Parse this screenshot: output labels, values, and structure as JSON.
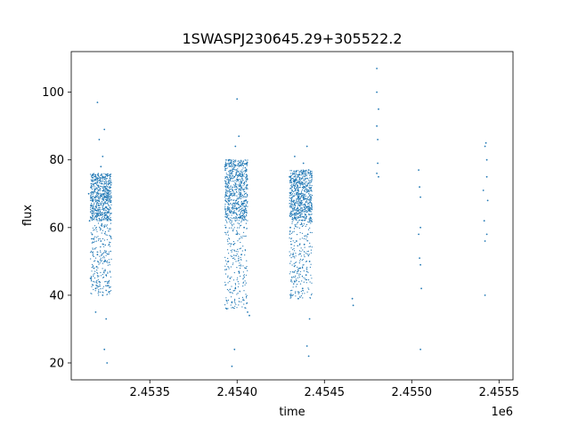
{
  "chart_data": {
    "type": "scatter",
    "title": "1SWASPJ230645.29+305522.2",
    "xlabel": "time",
    "ylabel": "flux",
    "x_offset_label": "1e6",
    "xlim": [
      2453050,
      2455580
    ],
    "ylim": [
      15,
      112
    ],
    "x_ticks": [
      2453500,
      2454000,
      2454500,
      2455000,
      2455500
    ],
    "x_tick_labels": [
      "2.4535",
      "2.4540",
      "2.4545",
      "2.4550",
      "2.4555"
    ],
    "y_ticks": [
      20,
      40,
      60,
      80,
      100
    ],
    "y_tick_labels": [
      "20",
      "40",
      "60",
      "80",
      "100"
    ],
    "grid": false,
    "marker_color": "#1f77b4",
    "series": [
      {
        "points": [
          [
            2453150,
            70
          ],
          [
            2453155,
            62
          ],
          [
            2453160,
            45
          ],
          [
            2453165,
            72
          ],
          [
            2453170,
            58
          ],
          [
            2453175,
            68
          ],
          [
            2453180,
            48
          ],
          [
            2453185,
            74
          ],
          [
            2453190,
            42
          ],
          [
            2453195,
            65
          ],
          [
            2453200,
            52
          ],
          [
            2453205,
            71
          ],
          [
            2453210,
            44
          ],
          [
            2453215,
            69
          ],
          [
            2453220,
            56
          ],
          [
            2453225,
            73
          ],
          [
            2453230,
            40
          ],
          [
            2453235,
            67
          ],
          [
            2453240,
            50
          ],
          [
            2453245,
            75
          ],
          [
            2453250,
            46
          ],
          [
            2453255,
            63
          ],
          [
            2453260,
            70
          ],
          [
            2453265,
            41
          ],
          [
            2453270,
            72
          ],
          [
            2453200,
            97
          ],
          [
            2453210,
            86
          ],
          [
            2453230,
            81
          ],
          [
            2453240,
            89
          ],
          [
            2453250,
            33
          ],
          [
            2453240,
            24
          ],
          [
            2453255,
            20
          ],
          [
            2453190,
            35
          ],
          [
            2453220,
            78
          ],
          [
            2453930,
            78
          ],
          [
            2453935,
            60
          ],
          [
            2453940,
            36
          ],
          [
            2453945,
            72
          ],
          [
            2453950,
            50
          ],
          [
            2453955,
            80
          ],
          [
            2453960,
            45
          ],
          [
            2453965,
            70
          ],
          [
            2453970,
            38
          ],
          [
            2453975,
            66
          ],
          [
            2453980,
            55
          ],
          [
            2453985,
            75
          ],
          [
            2453990,
            42
          ],
          [
            2453995,
            68
          ],
          [
            2454000,
            58
          ],
          [
            2454005,
            74
          ],
          [
            2454010,
            47
          ],
          [
            2454015,
            63
          ],
          [
            2454020,
            71
          ],
          [
            2454025,
            52
          ],
          [
            2454030,
            67
          ],
          [
            2454040,
            60
          ],
          [
            2454050,
            48
          ],
          [
            2454060,
            35
          ],
          [
            2454070,
            34
          ],
          [
            2453990,
            84
          ],
          [
            2454000,
            98
          ],
          [
            2454010,
            87
          ],
          [
            2453970,
            19
          ],
          [
            2453985,
            24
          ],
          [
            2454300,
            75
          ],
          [
            2454305,
            60
          ],
          [
            2454310,
            40
          ],
          [
            2454315,
            72
          ],
          [
            2454320,
            52
          ],
          [
            2454325,
            68
          ],
          [
            2454330,
            44
          ],
          [
            2454335,
            74
          ],
          [
            2454340,
            56
          ],
          [
            2454345,
            65
          ],
          [
            2454350,
            39
          ],
          [
            2454355,
            70
          ],
          [
            2454360,
            48
          ],
          [
            2454365,
            73
          ],
          [
            2454370,
            61
          ],
          [
            2454375,
            42
          ],
          [
            2454380,
            69
          ],
          [
            2454385,
            55
          ],
          [
            2454390,
            72
          ],
          [
            2454395,
            46
          ],
          [
            2454400,
            66
          ],
          [
            2454405,
            58
          ],
          [
            2454410,
            71
          ],
          [
            2454415,
            50
          ],
          [
            2454420,
            63
          ],
          [
            2454330,
            81
          ],
          [
            2454380,
            79
          ],
          [
            2454400,
            84
          ],
          [
            2454410,
            77
          ],
          [
            2454400,
            25
          ],
          [
            2454410,
            22
          ],
          [
            2454415,
            33
          ],
          [
            2454660,
            39
          ],
          [
            2454665,
            37
          ],
          [
            2454800,
            107
          ],
          [
            2454800,
            100
          ],
          [
            2454800,
            90
          ],
          [
            2454805,
            86
          ],
          [
            2454810,
            95
          ],
          [
            2454805,
            79
          ],
          [
            2454800,
            76
          ],
          [
            2454810,
            75
          ],
          [
            2455040,
            77
          ],
          [
            2455045,
            72
          ],
          [
            2455050,
            69
          ],
          [
            2455050,
            60
          ],
          [
            2455040,
            58
          ],
          [
            2455045,
            51
          ],
          [
            2455050,
            49
          ],
          [
            2455055,
            42
          ],
          [
            2455050,
            24
          ],
          [
            2455410,
            71
          ],
          [
            2455420,
            84
          ],
          [
            2455425,
            85
          ],
          [
            2455430,
            80
          ],
          [
            2455430,
            75
          ],
          [
            2455435,
            68
          ],
          [
            2455415,
            62
          ],
          [
            2455420,
            56
          ],
          [
            2455430,
            58
          ],
          [
            2455420,
            40
          ]
        ]
      }
    ]
  }
}
